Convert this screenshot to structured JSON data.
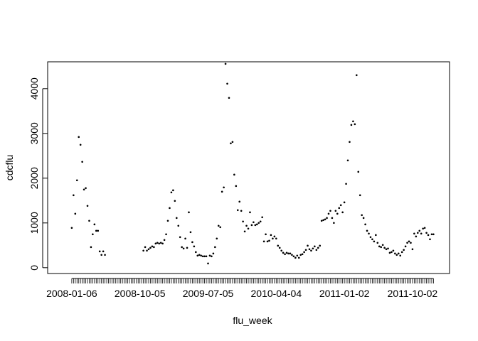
{
  "chart_data": {
    "type": "scatter",
    "xlabel": "flu_week",
    "ylabel": "cdcflu",
    "color": "#000000",
    "categories": [
      "2008-01-06",
      null,
      null,
      null,
      null,
      null,
      null,
      null,
      null,
      null,
      null,
      null,
      null,
      null,
      null,
      null,
      null,
      null,
      null,
      null,
      null,
      null,
      null,
      null,
      null,
      null,
      null,
      null,
      null,
      null,
      null,
      null,
      null,
      null,
      null,
      null,
      null,
      null,
      null,
      "2008-10-05",
      null,
      null,
      null,
      null,
      null,
      null,
      null,
      null,
      null,
      null,
      null,
      null,
      null,
      null,
      null,
      null,
      null,
      null,
      null,
      null,
      null,
      null,
      null,
      null,
      null,
      null,
      null,
      null,
      null,
      null,
      null,
      null,
      null,
      null,
      null,
      null,
      null,
      null,
      "2009-07-05",
      null,
      null,
      null,
      null,
      null,
      null,
      null,
      null,
      null,
      null,
      null,
      null,
      null,
      null,
      null,
      null,
      null,
      null,
      null,
      null,
      null,
      null,
      null,
      null,
      null,
      null,
      null,
      null,
      null,
      null,
      null,
      null,
      null,
      null,
      null,
      null,
      null,
      null,
      "2010-04-04",
      null,
      null,
      null,
      null,
      null,
      null,
      null,
      null,
      null,
      null,
      null,
      null,
      null,
      null,
      null,
      null,
      null,
      null,
      null,
      null,
      null,
      null,
      null,
      null,
      null,
      null,
      null,
      null,
      null,
      null,
      null,
      null,
      null,
      null,
      null,
      null,
      null,
      null,
      "2011-01-02",
      null,
      null,
      null,
      null,
      null,
      null,
      null,
      null,
      null,
      null,
      null,
      null,
      null,
      null,
      null,
      null,
      null,
      null,
      null,
      null,
      null,
      null,
      null,
      null,
      null,
      null,
      null,
      null,
      null,
      null,
      null,
      null,
      null,
      null,
      null,
      null,
      null,
      null,
      "2011-10-02",
      null,
      null,
      null,
      null,
      null,
      null,
      null,
      null,
      null,
      null,
      null,
      null
    ],
    "values": [
      889,
      1619,
      1206,
      1952,
      2920,
      2746,
      2365,
      1746,
      1778,
      1381,
      1048,
      460,
      746,
      968,
      825,
      825,
      365,
      286,
      365,
      286,
      null,
      null,
      null,
      null,
      null,
      null,
      null,
      null,
      null,
      null,
      null,
      null,
      null,
      null,
      null,
      null,
      null,
      null,
      null,
      null,
      null,
      381,
      460,
      381,
      413,
      444,
      476,
      460,
      540,
      556,
      540,
      556,
      540,
      619,
      746,
      1048,
      1333,
      1683,
      1730,
      1492,
      1111,
      937,
      683,
      460,
      429,
      651,
      444,
      1238,
      794,
      571,
      476,
      349,
      270,
      286,
      270,
      254,
      254,
      254,
      95,
      270,
      254,
      317,
      460,
      651,
      937,
      905,
      1698,
      1794,
      4555,
      4111,
      3794,
      2778,
      2810,
      2079,
      1825,
      1286,
      1476,
      1270,
      1032,
      810,
      937,
      873,
      1238,
      952,
      1016,
      952,
      968,
      1000,
      1032,
      1127,
      587,
      746,
      587,
      603,
      730,
      651,
      698,
      651,
      492,
      444,
      381,
      333,
      302,
      333,
      317,
      317,
      286,
      254,
      222,
      270,
      222,
      286,
      302,
      349,
      397,
      492,
      413,
      381,
      429,
      476,
      397,
      444,
      492,
      1048,
      1064,
      1080,
      1111,
      1206,
      1270,
      1111,
      1000,
      1270,
      1206,
      1333,
      1397,
      1238,
      1460,
      1873,
      2397,
      2810,
      3190,
      3270,
      3206,
      4302,
      2142,
      1619,
      1175,
      1111,
      968,
      825,
      762,
      683,
      635,
      587,
      730,
      556,
      476,
      460,
      508,
      444,
      413,
      429,
      333,
      349,
      381,
      317,
      286,
      317,
      270,
      349,
      397,
      476,
      556,
      587,
      556,
      413,
      762,
      698,
      778,
      825,
      762,
      873,
      889,
      778,
      730,
      635,
      746,
      746
    ],
    "xlim": [
      -13.8,
      216.2
    ],
    "ylim": [
      -130,
      4600
    ],
    "yticks": [
      0,
      1000,
      2000,
      3000,
      4000
    ]
  }
}
